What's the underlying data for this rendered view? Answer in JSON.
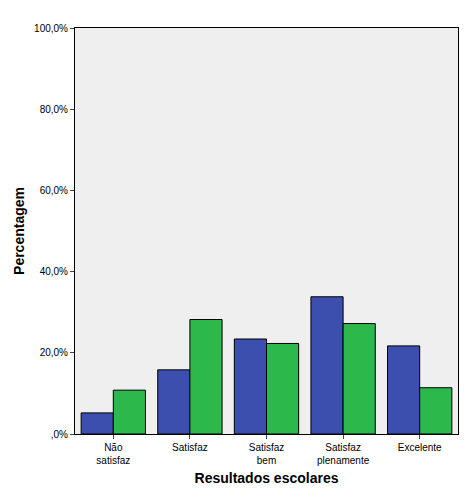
{
  "chart_data": {
    "type": "bar",
    "x_label": "Resultados escolares",
    "y_label": "Percentagem",
    "categories": [
      "Não satisfaz",
      "Satisfaz",
      "Satisfaz bem",
      "Satisfaz plenamente",
      "Excelente"
    ],
    "series": [
      {
        "color": "#3c4fae",
        "values": [
          5.2,
          15.8,
          23.4,
          33.8,
          21.7
        ]
      },
      {
        "color": "#2db84c",
        "values": [
          10.8,
          28.2,
          22.3,
          27.2,
          11.4
        ]
      }
    ],
    "ylim": [
      0,
      100
    ],
    "yticks": [
      {
        "value": 0,
        "label": ",0%"
      },
      {
        "value": 20,
        "label": "20,0%"
      },
      {
        "value": 40,
        "label": "40,0%"
      },
      {
        "value": 60,
        "label": "60,0%"
      },
      {
        "value": 80,
        "label": "80,0%"
      },
      {
        "value": 100,
        "label": "100,0%"
      }
    ],
    "grid": false
  }
}
